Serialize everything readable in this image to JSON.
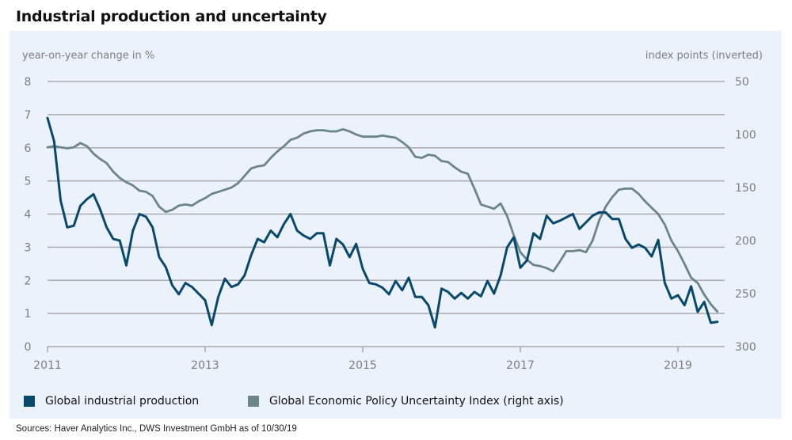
{
  "title": "Industrial production and uncertainty",
  "source": "Sources: Haver Analytics Inc., DWS Investment GmbH as of 10/30/19",
  "colors": {
    "ip": "#08496b",
    "epu": "#6b8589",
    "grid": "#a9aaad",
    "panel": "#ecf2fb",
    "tick_text": "#7d7e80"
  },
  "chart_data": {
    "type": "line",
    "title": "Industrial production and uncertainty",
    "xlabel": "",
    "ylabel": "year-on-year change in %",
    "y2label": "index points (inverted)",
    "ylim": [
      0,
      8
    ],
    "y2lim": [
      300,
      50
    ],
    "y2_inverted": true,
    "grid": true,
    "legend_position": "bottom-left",
    "x_ticks": [
      "2011",
      "2013",
      "2015",
      "2017",
      "2019"
    ],
    "y_ticks": [
      "0",
      "1",
      "2",
      "3",
      "4",
      "5",
      "6",
      "7",
      "8"
    ],
    "y2_ticks": [
      "50",
      "100",
      "150",
      "200",
      "250",
      "300"
    ],
    "x_start": "2011-01",
    "x_frequency": "monthly",
    "series": [
      {
        "name": "Global industrial production",
        "axis": "left",
        "values": [
          6.9,
          6.2,
          4.4,
          3.6,
          3.65,
          4.25,
          4.45,
          4.6,
          4.15,
          3.6,
          3.25,
          3.2,
          2.45,
          3.5,
          4.0,
          3.92,
          3.6,
          2.7,
          2.4,
          1.85,
          1.58,
          1.92,
          1.8,
          1.6,
          1.4,
          0.65,
          1.5,
          2.05,
          1.8,
          1.88,
          2.15,
          2.75,
          3.25,
          3.15,
          3.5,
          3.3,
          3.7,
          4.0,
          3.5,
          3.35,
          3.25,
          3.42,
          3.42,
          2.45,
          3.25,
          3.08,
          2.7,
          3.1,
          2.35,
          1.92,
          1.88,
          1.78,
          1.58,
          1.98,
          1.7,
          2.08,
          1.5,
          1.5,
          1.25,
          0.58,
          1.75,
          1.65,
          1.45,
          1.62,
          1.45,
          1.65,
          1.52,
          1.98,
          1.6,
          2.15,
          3.0,
          3.3,
          2.38,
          2.6,
          3.42,
          3.25,
          3.95,
          3.72,
          3.8,
          3.9,
          4.0,
          3.55,
          3.75,
          3.95,
          4.05,
          4.05,
          3.85,
          3.85,
          3.25,
          2.98,
          3.08,
          2.98,
          2.72,
          3.22,
          1.92,
          1.45,
          1.55,
          1.25,
          1.82,
          1.05,
          1.35,
          0.72,
          0.75
        ]
      },
      {
        "name": "Global Economic Policy Uncertainty Index (right axis)",
        "axis": "right",
        "values": [
          112,
          111,
          112,
          113,
          112,
          108,
          111,
          118,
          123,
          127,
          135,
          141,
          145,
          148,
          153,
          154,
          158,
          168,
          173,
          171,
          167,
          166,
          167,
          163,
          160,
          156,
          154,
          152,
          150,
          146,
          139,
          132,
          130,
          129,
          122,
          116,
          111,
          105,
          103,
          99,
          97,
          96,
          96,
          97,
          97,
          95,
          97,
          100,
          102,
          102,
          102,
          101,
          102,
          103,
          107,
          112,
          121,
          122,
          119,
          120,
          125,
          126,
          131,
          135,
          137,
          151,
          166,
          168,
          170,
          165,
          177,
          195,
          211,
          218,
          223,
          224,
          226,
          229,
          220,
          210,
          210,
          209,
          211,
          200,
          181,
          168,
          159,
          152,
          151,
          151,
          156,
          163,
          169,
          175,
          185,
          200,
          210,
          222,
          235,
          240,
          251,
          260,
          267
        ]
      }
    ]
  },
  "legend": [
    {
      "label": "Global industrial production",
      "color": "#08496b"
    },
    {
      "label": "Global Economic Policy Uncertainty Index (right axis)",
      "color": "#6b8589"
    }
  ]
}
